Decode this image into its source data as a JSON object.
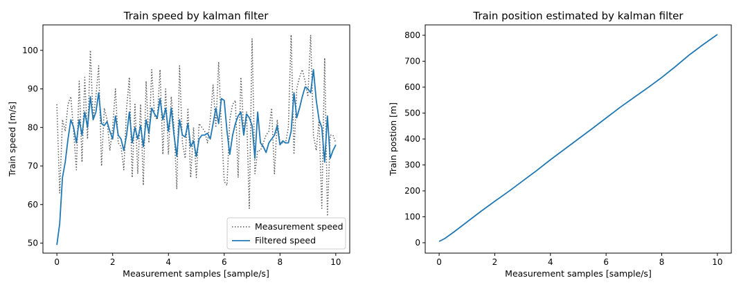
{
  "chart_data": [
    {
      "type": "line",
      "title": "Train speed by kalman filter",
      "xlabel": "Measurement samples [sample/s]",
      "ylabel": "Train speed [m/s]",
      "xlim": [
        -0.5,
        10.5
      ],
      "ylim": [
        47.4,
        106.6
      ],
      "xticks": [
        0,
        2,
        4,
        6,
        8,
        10
      ],
      "yticks": [
        50,
        60,
        70,
        80,
        90,
        100
      ],
      "grid": false,
      "legend": "lower-right",
      "series": [
        {
          "name": "Measurement speed",
          "style": "dotted",
          "color": "#555555",
          "x": [
            0.0,
            0.1,
            0.2,
            0.3,
            0.4,
            0.5,
            0.6,
            0.7,
            0.8,
            0.9,
            1.0,
            1.1,
            1.2,
            1.3,
            1.4,
            1.5,
            1.6,
            1.7,
            1.8,
            1.9,
            2.0,
            2.1,
            2.2,
            2.3,
            2.4,
            2.5,
            2.6,
            2.7,
            2.8,
            2.9,
            3.0,
            3.1,
            3.2,
            3.3,
            3.4,
            3.5,
            3.6,
            3.7,
            3.8,
            3.9,
            4.0,
            4.1,
            4.2,
            4.3,
            4.4,
            4.5,
            4.6,
            4.7,
            4.8,
            4.9,
            5.0,
            5.1,
            5.2,
            5.3,
            5.4,
            5.5,
            5.6,
            5.7,
            5.8,
            5.9,
            6.0,
            6.1,
            6.2,
            6.3,
            6.4,
            6.5,
            6.6,
            6.7,
            6.8,
            6.9,
            7.0,
            7.1,
            7.2,
            7.3,
            7.4,
            7.5,
            7.6,
            7.7,
            7.8,
            7.9,
            8.0,
            8.1,
            8.2,
            8.3,
            8.4,
            8.5,
            8.6,
            8.7,
            8.8,
            8.9,
            9.0,
            9.1,
            9.2,
            9.3,
            9.4,
            9.5,
            9.6,
            9.7,
            9.8,
            9.9,
            10.0
          ],
          "values": [
            86,
            63,
            82,
            79,
            86,
            88,
            79,
            69,
            92,
            71,
            93,
            77,
            100,
            82,
            88,
            96,
            70,
            85,
            82,
            74,
            80,
            90,
            76,
            75,
            69,
            85,
            93,
            67,
            86,
            68,
            86,
            65,
            92,
            76,
            95,
            83,
            82,
            95,
            73,
            90,
            73,
            88,
            80,
            64,
            96,
            76,
            72,
            85,
            67,
            80,
            67,
            81,
            80,
            79,
            76,
            82,
            91,
            80,
            97,
            80,
            66,
            65,
            82,
            86,
            87,
            67,
            93,
            79,
            84,
            59,
            103,
            68,
            74,
            74,
            76,
            78,
            79,
            85,
            68,
            82,
            76,
            76,
            76,
            80,
            104,
            73,
            90,
            93,
            95,
            92,
            88,
            104,
            78,
            74,
            82,
            59,
            98,
            57,
            78,
            78,
            76
          ]
        },
        {
          "name": "Filtered speed",
          "style": "solid",
          "color": "#1f77b4",
          "x": [
            0.0,
            0.1,
            0.2,
            0.3,
            0.4,
            0.5,
            0.6,
            0.7,
            0.8,
            0.9,
            1.0,
            1.1,
            1.2,
            1.3,
            1.4,
            1.5,
            1.6,
            1.7,
            1.8,
            1.9,
            2.0,
            2.1,
            2.2,
            2.3,
            2.4,
            2.5,
            2.6,
            2.7,
            2.8,
            2.9,
            3.0,
            3.1,
            3.2,
            3.3,
            3.4,
            3.5,
            3.6,
            3.7,
            3.8,
            3.9,
            4.0,
            4.1,
            4.2,
            4.3,
            4.4,
            4.5,
            4.6,
            4.7,
            4.8,
            4.9,
            5.0,
            5.1,
            5.2,
            5.3,
            5.4,
            5.5,
            5.6,
            5.7,
            5.8,
            5.9,
            6.0,
            6.1,
            6.2,
            6.3,
            6.4,
            6.5,
            6.6,
            6.7,
            6.8,
            6.9,
            7.0,
            7.1,
            7.2,
            7.3,
            7.4,
            7.5,
            7.6,
            7.7,
            7.8,
            7.9,
            8.0,
            8.1,
            8.2,
            8.3,
            8.4,
            8.5,
            8.6,
            8.7,
            8.8,
            8.9,
            9.0,
            9.1,
            9.2,
            9.3,
            9.4,
            9.5,
            9.6,
            9.7,
            9.8,
            9.9,
            10.0
          ],
          "values": [
            49.5,
            55,
            67,
            71,
            77,
            82,
            80,
            76,
            82,
            78,
            84,
            80,
            88,
            82,
            84,
            89,
            81,
            80.5,
            81.5,
            79,
            77,
            83,
            78,
            77,
            74,
            78,
            84,
            76,
            80,
            77,
            80.5,
            75,
            82,
            78.5,
            85,
            83.5,
            82.5,
            87.5,
            82,
            85,
            79,
            85,
            78,
            72.5,
            82,
            78,
            77.5,
            81,
            75,
            76.5,
            72.5,
            77,
            78,
            78,
            78.5,
            77,
            81,
            85,
            81,
            87.5,
            87,
            79,
            73,
            78,
            81,
            83,
            84,
            78,
            83.5,
            82.5,
            80.5,
            72,
            84,
            76,
            75,
            73.5,
            76,
            77,
            78,
            80.5,
            75.5,
            76.5,
            76,
            76,
            79,
            89,
            82.5,
            85,
            88,
            90.5,
            90,
            89,
            95,
            87,
            82,
            80,
            71,
            83,
            72,
            74,
            75.5
          ]
        }
      ]
    },
    {
      "type": "line",
      "title": "Train position estimated by kalman filter",
      "xlabel": "Measurement samples [sample/s]",
      "ylabel": "Train postion [m]",
      "xlim": [
        -0.5,
        10.5
      ],
      "ylim": [
        -40,
        840
      ],
      "xticks": [
        0,
        2,
        4,
        6,
        8,
        10
      ],
      "yticks": [
        0,
        100,
        200,
        300,
        400,
        500,
        600,
        700,
        800
      ],
      "grid": false,
      "series": [
        {
          "style": "solid",
          "color": "#1f77b4",
          "x": [
            0,
            0.2,
            0.5,
            1,
            1.5,
            2,
            2.5,
            3,
            3.5,
            4,
            4.5,
            5,
            5.5,
            6,
            6.5,
            7,
            7.5,
            8,
            8.5,
            9,
            9.5,
            10
          ],
          "values": [
            5,
            16,
            39,
            80,
            121,
            160,
            198,
            238,
            278,
            320,
            360,
            400,
            440,
            481,
            522,
            560,
            598,
            637,
            680,
            725,
            765,
            803
          ]
        }
      ]
    }
  ]
}
